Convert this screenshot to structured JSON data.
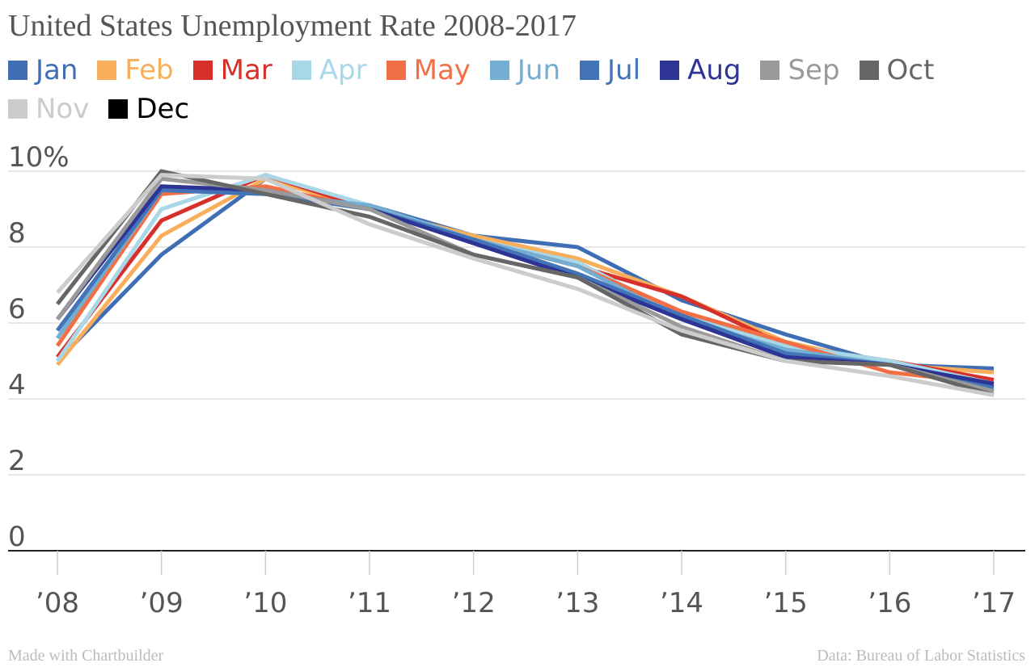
{
  "chart_data": {
    "type": "line",
    "title": "United States Unemployment Rate 2008-2017",
    "xlabel": "",
    "ylabel": "",
    "x": [
      "’08",
      "’09",
      "’10",
      "’11",
      "’12",
      "’13",
      "’14",
      "’15",
      "’16",
      "’17"
    ],
    "ylim": [
      0,
      10
    ],
    "yticks": [
      {
        "value": 0,
        "label": "0"
      },
      {
        "value": 2,
        "label": "2"
      },
      {
        "value": 4,
        "label": "4"
      },
      {
        "value": 6,
        "label": "6"
      },
      {
        "value": 8,
        "label": "8"
      },
      {
        "value": 10,
        "label": "10%"
      }
    ],
    "grid": true,
    "legend_position": "top",
    "series": [
      {
        "name": "Jan",
        "color": "#3f6eb5",
        "values": [
          5.0,
          7.8,
          9.8,
          9.1,
          8.3,
          8.0,
          6.6,
          5.7,
          4.9,
          4.8
        ]
      },
      {
        "name": "Feb",
        "color": "#f9ae5c",
        "values": [
          4.9,
          8.3,
          9.8,
          9.0,
          8.3,
          7.7,
          6.7,
          5.5,
          4.9,
          4.7
        ]
      },
      {
        "name": "Mar",
        "color": "#d7302a",
        "values": [
          5.1,
          8.7,
          9.9,
          9.0,
          8.2,
          7.5,
          6.7,
          5.4,
          5.0,
          4.5
        ]
      },
      {
        "name": "Apr",
        "color": "#a8d8e8",
        "values": [
          5.0,
          9.0,
          9.9,
          9.1,
          8.2,
          7.6,
          6.2,
          5.4,
          5.0,
          4.4
        ]
      },
      {
        "name": "May",
        "color": "#f26f45",
        "values": [
          5.4,
          9.4,
          9.6,
          9.0,
          8.2,
          7.5,
          6.3,
          5.5,
          4.7,
          4.4
        ]
      },
      {
        "name": "Jun",
        "color": "#74add2",
        "values": [
          5.6,
          9.5,
          9.4,
          9.1,
          8.2,
          7.5,
          6.1,
          5.3,
          4.9,
          4.3
        ]
      },
      {
        "name": "Jul",
        "color": "#4374b8",
        "values": [
          5.8,
          9.5,
          9.4,
          9.0,
          8.2,
          7.3,
          6.2,
          5.2,
          4.9,
          4.3
        ]
      },
      {
        "name": "Aug",
        "color": "#2d3494",
        "values": [
          6.1,
          9.6,
          9.5,
          9.0,
          8.1,
          7.2,
          6.1,
          5.1,
          4.9,
          4.4
        ]
      },
      {
        "name": "Sep",
        "color": "#9a9a9a",
        "values": [
          6.1,
          9.8,
          9.5,
          9.0,
          7.8,
          7.2,
          5.9,
          5.0,
          4.9,
          4.2
        ]
      },
      {
        "name": "Oct",
        "color": "#666666",
        "values": [
          6.5,
          10.0,
          9.4,
          8.8,
          7.8,
          7.2,
          5.7,
          5.0,
          4.9,
          4.1
        ]
      },
      {
        "name": "Nov",
        "color": "#cccccc",
        "values": [
          6.8,
          9.9,
          9.8,
          8.6,
          7.7,
          6.9,
          5.8,
          5.0,
          4.6,
          4.1
        ]
      },
      {
        "name": "Dec",
        "color": "#000000",
        "values": [
          null,
          null,
          null,
          null,
          null,
          null,
          null,
          null,
          null,
          null
        ]
      }
    ]
  },
  "footer": {
    "left": "Made with Chartbuilder",
    "right": "Data: Bureau of Labor Statistics"
  }
}
